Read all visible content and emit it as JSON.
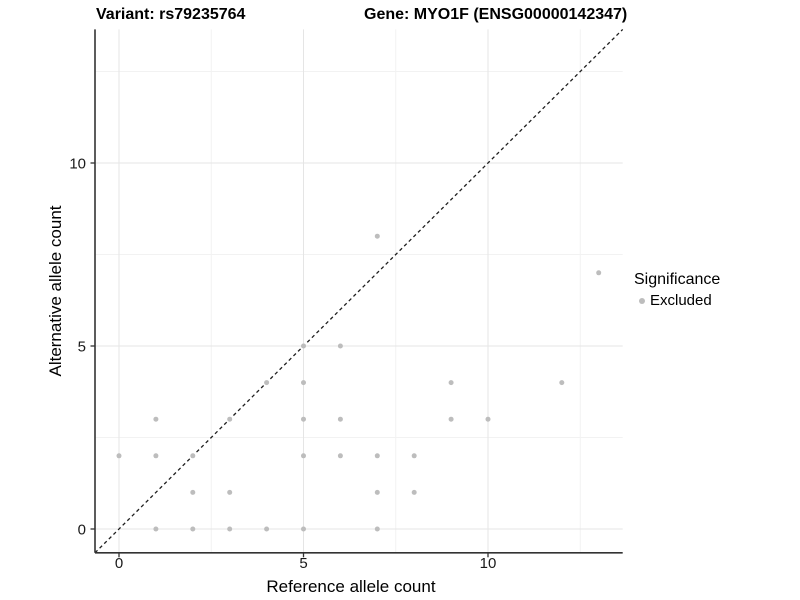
{
  "header": {
    "variant_title": "Variant: rs79235764",
    "gene_title": "Gene: MYO1F (ENSG00000142347)"
  },
  "chart_data": {
    "type": "scatter",
    "xlabel": "Reference allele count",
    "ylabel": "Alternative allele count",
    "xlim": [
      0,
      13
    ],
    "ylim": [
      0,
      13
    ],
    "xticks": [
      0,
      5,
      10
    ],
    "yticks": [
      0,
      5,
      10
    ],
    "minor_ticks": [
      2.5,
      7.5,
      12.5
    ],
    "grid": "major and minor gridlines on, light gray",
    "identity_line": "dashed y = x diagonal from bottom-left to top-right panel corner",
    "series": [
      {
        "name": "Excluded",
        "color": "#bdbdbd",
        "points": [
          [
            0,
            2
          ],
          [
            1,
            0
          ],
          [
            1,
            2
          ],
          [
            1,
            3
          ],
          [
            2,
            0
          ],
          [
            2,
            1
          ],
          [
            2,
            2
          ],
          [
            3,
            0
          ],
          [
            3,
            1
          ],
          [
            3,
            3
          ],
          [
            4,
            0
          ],
          [
            4,
            4
          ],
          [
            5,
            0
          ],
          [
            5,
            2
          ],
          [
            5,
            3
          ],
          [
            5,
            4
          ],
          [
            5,
            5
          ],
          [
            6,
            2
          ],
          [
            6,
            3
          ],
          [
            6,
            5
          ],
          [
            7,
            0
          ],
          [
            7,
            1
          ],
          [
            7,
            2
          ],
          [
            7,
            8
          ],
          [
            8,
            1
          ],
          [
            8,
            2
          ],
          [
            9,
            3
          ],
          [
            9,
            4
          ],
          [
            10,
            3
          ],
          [
            12,
            4
          ],
          [
            13,
            7
          ]
        ]
      }
    ],
    "legend": {
      "title": "Significance",
      "position": "right",
      "items": [
        {
          "label": "Excluded",
          "color": "#bdbdbd"
        }
      ]
    }
  },
  "colors": {
    "point": "#bdbdbd",
    "axis_line": "#333333",
    "tick_label": "#1a1a1a",
    "grid_major": "#e5e5e5",
    "grid_minor": "#f2f2f2",
    "identity_line": "#1f1f1f",
    "background": "#ffffff"
  }
}
